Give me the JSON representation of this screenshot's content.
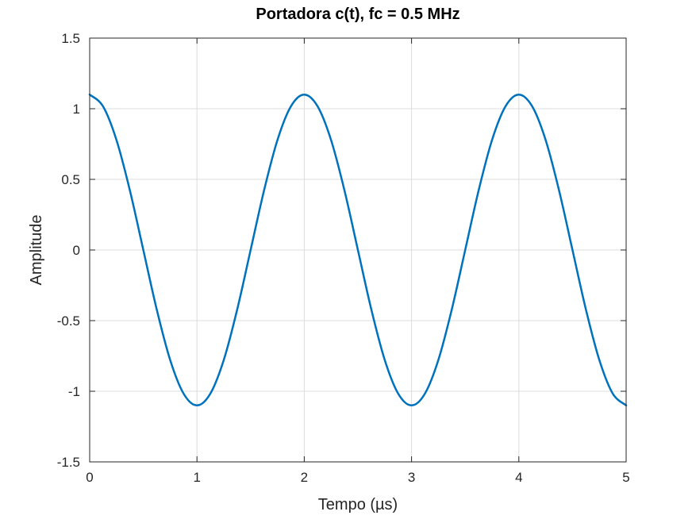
{
  "chart_data": {
    "type": "line",
    "title": "Portadora c(t), fc = 0.5 MHz",
    "xlabel": "Tempo (µs)",
    "ylabel": "Amplitude",
    "xlim": [
      0,
      5
    ],
    "ylim": [
      -1.5,
      1.5
    ],
    "xticks": [
      0,
      1,
      2,
      3,
      4,
      5
    ],
    "xtick_labels": [
      "0",
      "1",
      "2",
      "3",
      "4",
      "5"
    ],
    "yticks": [
      -1.5,
      -1,
      -0.5,
      0,
      0.5,
      1,
      1.5
    ],
    "ytick_labels": [
      "-1.5",
      "-1",
      "-0.5",
      "0",
      "0.5",
      "1",
      "1.5"
    ],
    "grid": true,
    "series": [
      {
        "color": "#0072bd",
        "x": [
          0,
          0.125,
          0.25,
          0.375,
          0.5,
          0.625,
          0.75,
          0.875,
          1,
          1.125,
          1.25,
          1.375,
          1.5,
          1.625,
          1.75,
          1.875,
          2,
          2.125,
          2.25,
          2.375,
          2.5,
          2.625,
          2.75,
          2.875,
          3,
          3.125,
          3.25,
          3.375,
          3.5,
          3.625,
          3.75,
          3.875,
          4,
          4.125,
          4.25,
          4.375,
          4.5,
          4.625,
          4.75,
          4.875,
          5
        ],
        "y": [
          1.1,
          1.016,
          0.778,
          0.421,
          0,
          -0.421,
          -0.778,
          -1.016,
          -1.1,
          -1.016,
          -0.778,
          -0.421,
          0,
          0.421,
          0.778,
          1.016,
          1.1,
          1.016,
          0.778,
          0.421,
          0,
          -0.421,
          -0.778,
          -1.016,
          -1.1,
          -1.016,
          -0.778,
          -0.421,
          0,
          0.421,
          0.778,
          1.016,
          1.1,
          1.016,
          0.778,
          0.421,
          0,
          -0.421,
          -0.778,
          -1.016,
          -1.1
        ]
      }
    ]
  }
}
